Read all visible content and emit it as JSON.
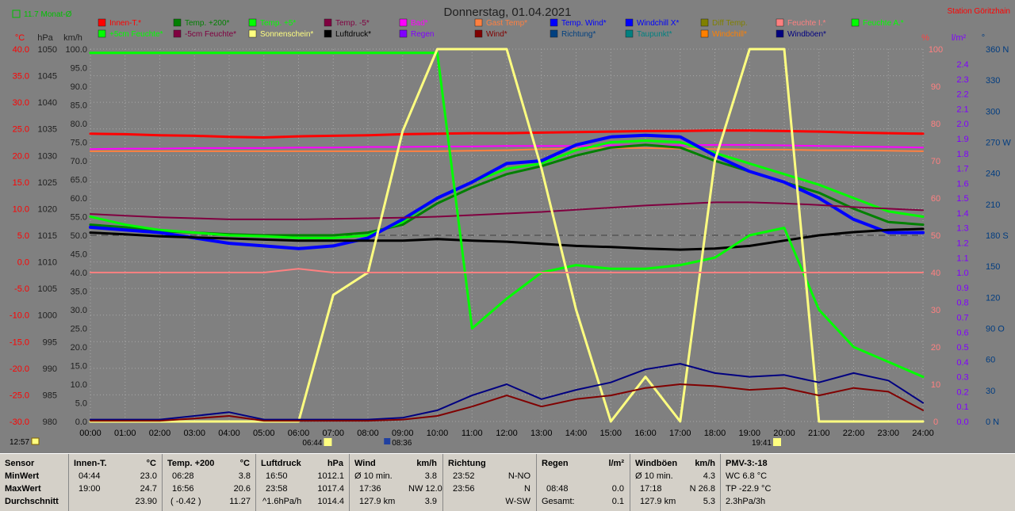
{
  "header": {
    "title": "Donnerstag, 01.04.2021",
    "station": "Station Göritzhain",
    "month_avg": "11.7 Monat-Ø"
  },
  "legend": [
    {
      "label": "Innen-T.*",
      "color": "#ff0000"
    },
    {
      "label": "Temp. +200*",
      "color": "#008000"
    },
    {
      "label": "Temp. +5*",
      "color": "#00ff00"
    },
    {
      "label": "Temp. -5*",
      "color": "#800040"
    },
    {
      "label": "Bad*",
      "color": "#ff00ff"
    },
    {
      "label": "Gast Temp*",
      "color": "#ff8040"
    },
    {
      "label": "Temp. Wind*",
      "color": "#0000ff"
    },
    {
      "label": "Windchill X*",
      "color": "#0000ff"
    },
    {
      "label": "Diff Temp.",
      "color": "#808000"
    },
    {
      "label": "Feuchte I.*",
      "color": "#ff8080"
    },
    {
      "label": "Feuchte A.*",
      "color": "#00ff00"
    },
    {
      "label": "+5cm Feuchte*",
      "color": "#00ff00"
    },
    {
      "label": "-5cm Feuchte*",
      "color": "#800040"
    },
    {
      "label": "Sonnenschein*",
      "color": "#ffff80"
    },
    {
      "label": "Luftdruck*",
      "color": "#000000"
    },
    {
      "label": "Regen",
      "color": "#8000ff"
    },
    {
      "label": "Wind*",
      "color": "#800000"
    },
    {
      "label": "Richtung*",
      "color": "#004080"
    },
    {
      "label": "Taupunkt*",
      "color": "#008080"
    },
    {
      "label": "Windchill*",
      "color": "#ff8000"
    },
    {
      "label": "Windböen*",
      "color": "#000080"
    }
  ],
  "axes": {
    "units": [
      "°C",
      "hPa",
      "km/h",
      "%",
      "l/m²",
      "°"
    ],
    "temp_ticks": [
      "40.0",
      "35.0",
      "30.0",
      "25.0",
      "20.0",
      "15.0",
      "10.0",
      "5.0",
      "0.0",
      "-5.0",
      "-10.0",
      "-15.0",
      "-20.0",
      "-25.0",
      "-30.0"
    ],
    "hpa_ticks": [
      "1050",
      "1045",
      "1040",
      "1035",
      "1030",
      "1025",
      "1020",
      "1015",
      "1010",
      "1005",
      "1000",
      "995",
      "990",
      "985",
      "980"
    ],
    "kmh_ticks": [
      "100.0",
      "95.0",
      "90.0",
      "85.0",
      "80.0",
      "75.0",
      "70.0",
      "65.0",
      "60.0",
      "55.0",
      "50.0",
      "45.0",
      "40.0",
      "35.0",
      "30.0",
      "25.0",
      "20.0",
      "15.0",
      "10.0",
      "5.0",
      "0.0"
    ],
    "pct_ticks": [
      "100",
      "90",
      "80",
      "70",
      "60",
      "50",
      "40",
      "30",
      "20",
      "10",
      "0"
    ],
    "rain_ticks": [
      "2.4",
      "2.3",
      "2.2",
      "2.1",
      "2.0",
      "1.9",
      "1.8",
      "1.7",
      "1.6",
      "1.5",
      "1.4",
      "1.3",
      "1.2",
      "1.1",
      "1.0",
      "0.9",
      "0.8",
      "0.7",
      "0.6",
      "0.5",
      "0.4",
      "0.3",
      "0.2",
      "0.1",
      "0.0"
    ],
    "dir_ticks": [
      "360 N",
      "330",
      "300",
      "270 W",
      "240",
      "210",
      "180 S",
      "150",
      "120",
      "90 O",
      "60",
      "30",
      "0 N"
    ],
    "x_ticks": [
      "00:00",
      "01:00",
      "02:00",
      "03:00",
      "04:00",
      "05:00",
      "06:00",
      "07:00",
      "08:00",
      "09:00",
      "10:00",
      "11:00",
      "12:00",
      "13:00",
      "14:00",
      "15:00",
      "16:00",
      "17:00",
      "18:00",
      "19:00",
      "20:00",
      "21:00",
      "22:00",
      "23:00",
      "24:00"
    ],
    "sun_marks": {
      "left": "12:57",
      "rise": "06:44",
      "noon": "08:36",
      "set": "19:41"
    }
  },
  "chart_data": {
    "type": "line",
    "title": "Donnerstag, 01.04.2021",
    "x_unit": "hours",
    "x": [
      0,
      1,
      2,
      3,
      4,
      5,
      6,
      7,
      8,
      9,
      10,
      11,
      12,
      13,
      14,
      15,
      16,
      17,
      18,
      19,
      20,
      21,
      22,
      23,
      24
    ],
    "ylim_temp": [
      -30,
      40
    ],
    "ylim_hpa": [
      980,
      1050
    ],
    "ylim_kmh": [
      0,
      100
    ],
    "ylim_pct": [
      0,
      100
    ],
    "series": [
      {
        "name": "Innen-T.*",
        "color": "#ff0000",
        "axis": "temp",
        "width": 3,
        "values": [
          24.1,
          24.0,
          23.8,
          23.7,
          23.5,
          23.4,
          23.6,
          23.7,
          23.8,
          24.0,
          24.1,
          24.2,
          24.2,
          24.3,
          24.4,
          24.5,
          24.6,
          24.6,
          24.7,
          24.7,
          24.6,
          24.5,
          24.3,
          24.2,
          24.1
        ]
      },
      {
        "name": "Bad*",
        "color": "#ff00ff",
        "axis": "temp",
        "width": 2,
        "values": [
          21.2,
          21.3,
          21.3,
          21.4,
          21.4,
          21.4,
          21.5,
          21.5,
          21.6,
          21.6,
          21.7,
          21.7,
          21.8,
          21.8,
          21.8,
          21.9,
          21.9,
          21.9,
          22.0,
          22.0,
          21.9,
          21.8,
          21.7,
          21.6,
          21.5
        ]
      },
      {
        "name": "Gast Temp*",
        "color": "#ff8040",
        "axis": "temp",
        "width": 2,
        "values": [
          20.8,
          20.8,
          20.8,
          20.8,
          20.8,
          20.8,
          20.8,
          20.8,
          20.8,
          20.8,
          20.8,
          20.9,
          21.0,
          21.2,
          21.3,
          21.4,
          21.4,
          21.3,
          21.2,
          21.1,
          21.1,
          21.0,
          21.0,
          20.9,
          20.8
        ]
      },
      {
        "name": "Temp. +200*",
        "color": "#008000",
        "axis": "temp",
        "width": 3,
        "values": [
          7.0,
          6.5,
          5.8,
          5.5,
          5.2,
          5.0,
          5.0,
          5.0,
          5.5,
          7.0,
          11.0,
          14.0,
          16.5,
          18.0,
          20.0,
          21.5,
          22.0,
          21.5,
          19.0,
          17.0,
          15.0,
          13.0,
          10.0,
          7.5,
          7.0
        ]
      },
      {
        "name": "Temp. +5*",
        "color": "#00ff00",
        "axis": "temp",
        "width": 3,
        "values": [
          8.5,
          7.0,
          6.0,
          5.5,
          5.0,
          4.8,
          4.5,
          4.5,
          5.0,
          7.5,
          12.0,
          15.0,
          17.5,
          18.5,
          21.0,
          22.5,
          22.8,
          22.5,
          20.5,
          18.5,
          16.5,
          14.5,
          12.0,
          9.5,
          8.5
        ]
      },
      {
        "name": "Temp. Wind*",
        "color": "#0000ff",
        "axis": "temp",
        "width": 4,
        "values": [
          6.5,
          6.0,
          5.5,
          4.5,
          3.5,
          3.0,
          2.5,
          3.0,
          4.5,
          8.0,
          12.0,
          15.0,
          18.5,
          19.0,
          22.0,
          23.5,
          23.8,
          23.5,
          20.0,
          17.0,
          15.0,
          12.0,
          8.0,
          5.5,
          5.5
        ]
      },
      {
        "name": "Temp. -5*",
        "color": "#800040",
        "axis": "temp",
        "width": 2,
        "values": [
          9.0,
          8.7,
          8.4,
          8.2,
          8.0,
          8.0,
          8.0,
          8.1,
          8.2,
          8.3,
          8.5,
          8.8,
          9.1,
          9.4,
          9.8,
          10.2,
          10.6,
          10.9,
          11.2,
          11.2,
          11.0,
          10.7,
          10.3,
          10.0,
          9.7
        ]
      },
      {
        "name": "Luftdruck*",
        "color": "#000000",
        "axis": "hpa",
        "width": 3,
        "values": [
          1015.5,
          1015.2,
          1014.8,
          1014.6,
          1014.4,
          1014.2,
          1014.0,
          1014.0,
          1014.0,
          1014.0,
          1014.3,
          1014.0,
          1013.8,
          1013.4,
          1013.0,
          1012.8,
          1012.5,
          1012.3,
          1012.5,
          1013.0,
          1014.0,
          1015.0,
          1015.6,
          1016.0,
          1016.2
        ]
      },
      {
        "name": "Feuchte A.*",
        "color": "#00ff00",
        "axis": "pct",
        "width": 3,
        "values": [
          99,
          99,
          99,
          99,
          99,
          99,
          99,
          99,
          99,
          99,
          99,
          25,
          33,
          40,
          42,
          41,
          41,
          42,
          44,
          50,
          52,
          30,
          20,
          16,
          12
        ]
      },
      {
        "name": "Sonnenschein*",
        "color": "#ffff80",
        "axis": "pct",
        "width": 3,
        "values": [
          0,
          0,
          0,
          0,
          0,
          0,
          0,
          34,
          40,
          78,
          100,
          100,
          100,
          68,
          30,
          0,
          12,
          0,
          70,
          100,
          100,
          0,
          0,
          0,
          0
        ]
      },
      {
        "name": "Windböen*",
        "color": "#000080",
        "axis": "kmh",
        "width": 2,
        "values": [
          0.5,
          0.5,
          0.5,
          1.5,
          2.5,
          0.5,
          0.5,
          0.5,
          0.5,
          1.0,
          3.0,
          7.0,
          10.0,
          6.0,
          8.5,
          10.5,
          14.0,
          15.5,
          13.0,
          12.0,
          12.5,
          10.5,
          13.0,
          11.0,
          5.0
        ]
      },
      {
        "name": "Wind*",
        "color": "#800000",
        "axis": "kmh",
        "width": 2,
        "values": [
          0.2,
          0.2,
          0.2,
          0.8,
          1.5,
          0.2,
          0.2,
          0.2,
          0.2,
          0.5,
          1.5,
          4.0,
          7.0,
          4.0,
          6.0,
          7.0,
          9.0,
          10.0,
          9.5,
          8.5,
          9.0,
          7.0,
          9.0,
          8.0,
          3.0
        ]
      },
      {
        "name": "Feuchte I.*",
        "color": "#ff8080",
        "axis": "pct",
        "width": 2,
        "values": [
          40,
          40,
          40,
          40,
          40,
          40,
          41,
          40,
          40,
          40,
          40,
          40,
          40,
          40,
          40,
          40,
          40,
          40,
          40,
          40,
          40,
          40,
          40,
          40,
          40
        ]
      }
    ]
  },
  "panel": {
    "sensor": {
      "title": "Sensor",
      "rows": [
        "MinWert",
        "MaxWert",
        "Durchschnitt"
      ]
    },
    "innen": {
      "title": "Innen-T.",
      "unit": "°C",
      "rows": [
        [
          "04:44",
          "23.0"
        ],
        [
          "19:00",
          "24.7"
        ],
        [
          "",
          "23.90"
        ]
      ]
    },
    "temp200": {
      "title": "Temp. +200",
      "unit": "°C",
      "rows": [
        [
          "06:28",
          "3.8"
        ],
        [
          "16:56",
          "20.6"
        ],
        [
          "( -0.42 )",
          "11.27"
        ]
      ]
    },
    "luftdruck": {
      "title": "Luftdruck",
      "unit": "hPa",
      "rows": [
        [
          "16:50",
          "1012.1"
        ],
        [
          "23:58",
          "1017.4"
        ],
        [
          "^1.6hPa/h",
          "1014.4"
        ]
      ]
    },
    "wind": {
      "title": "Wind",
      "unit": "km/h",
      "rows": [
        [
          "Ø 10 min.",
          "3.8"
        ],
        [
          "17:36",
          "NW 12.0"
        ],
        [
          "127.9 km",
          "3.9"
        ]
      ]
    },
    "richtung": {
      "title": "Richtung",
      "unit": "",
      "rows": [
        [
          "23:52",
          "N-NO"
        ],
        [
          "23:56",
          "N"
        ],
        [
          "",
          "W-SW"
        ]
      ]
    },
    "regen": {
      "title": "Regen",
      "unit": "l/m²",
      "rows": [
        [
          "",
          ""
        ],
        [
          "08:48",
          "0.0"
        ],
        [
          "Gesamt:",
          "0.1"
        ]
      ]
    },
    "windboeen": {
      "title": "Windböen",
      "unit": "km/h",
      "rows": [
        [
          "Ø 10 min.",
          "4.3"
        ],
        [
          "17:18",
          "N 26.8"
        ],
        [
          "127.9 km",
          "5.3"
        ]
      ]
    },
    "pmv": {
      "title": "PMV-3:-18",
      "rows": [
        "WC 6.8 °C",
        "TP -22.9 °C",
        "2.3hPa/3h"
      ]
    }
  }
}
